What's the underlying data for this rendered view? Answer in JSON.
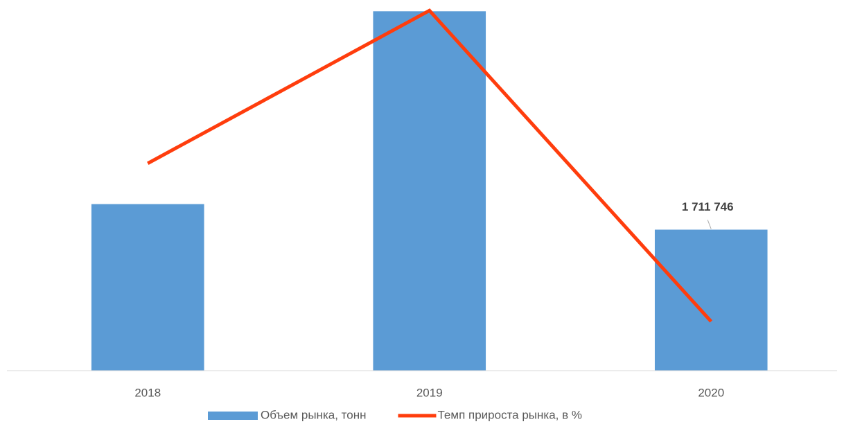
{
  "chart_data": {
    "type": "bar_line",
    "categories": [
      "2018",
      "2019",
      "2020"
    ],
    "ylim": [
      0,
      4500000
    ],
    "y2lim": [
      -89,
      122
    ],
    "series": [
      {
        "name": "Объем рынка, тонн",
        "type": "bar",
        "color": "#5b9bd5",
        "values": [
          2022000,
          4363000,
          1711746
        ],
        "value_labels": [
          null,
          null,
          "1 711 746"
        ]
      },
      {
        "name": "Темп прироста рынка, в %",
        "type": "line",
        "axis": "y2",
        "color": "#ff3d0d",
        "values": [
          29,
          116,
          -61
        ]
      }
    ]
  }
}
